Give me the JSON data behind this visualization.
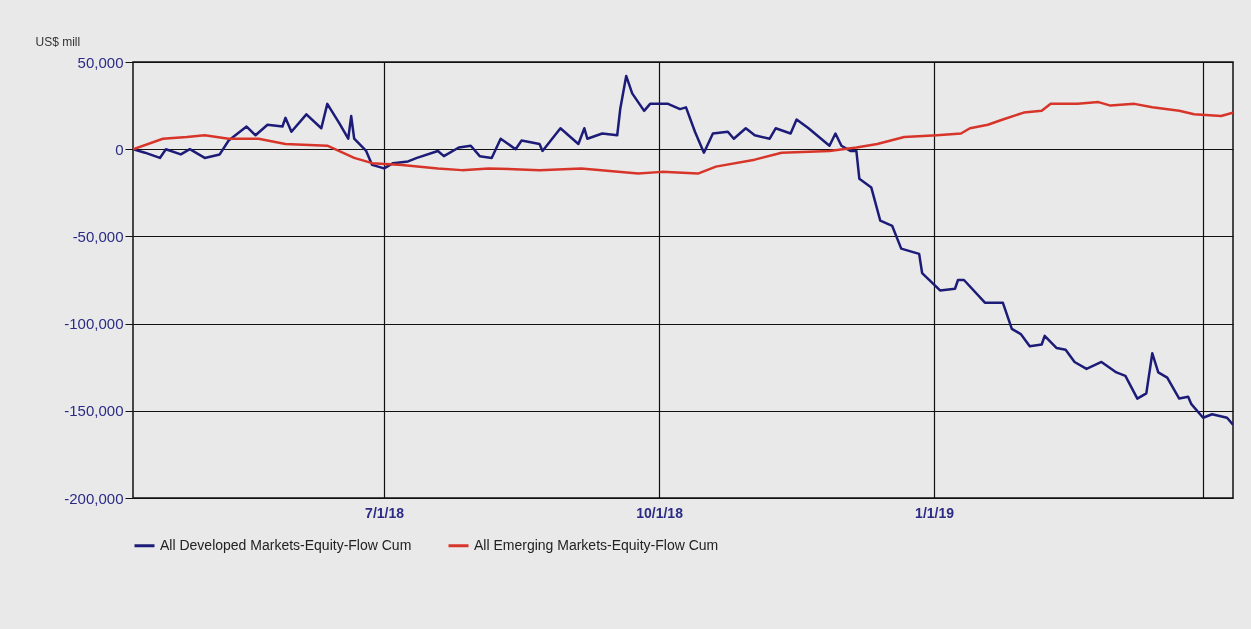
{
  "chart_data": {
    "type": "line",
    "ylabel": "US$ mill",
    "xlim": [
      "2018-04-08",
      "2019-04-11"
    ],
    "xticks": [
      {
        "value": "2018-07-01",
        "label": "7/1/18"
      },
      {
        "value": "2018-10-01",
        "label": "10/1/18"
      },
      {
        "value": "2019-01-01",
        "label": "1/1/19"
      },
      {
        "value": "2019-04-01",
        "label": null
      }
    ],
    "ylim": [
      -200000,
      50000
    ],
    "yticks": [
      {
        "value": 50000,
        "label": "50,000"
      },
      0,
      {
        "value": -50000,
        "label": "-50,000"
      },
      {
        "value": -100000,
        "label": "-100,000"
      },
      {
        "value": -150000,
        "label": "-150,000"
      },
      {
        "value": -200000,
        "label": "-200,000"
      }
    ],
    "grid": true,
    "legend": "bottom",
    "series": [
      {
        "name": "All Developed Markets-Equity-Flow Cum",
        "color": "#1c1c78",
        "x": [
          "2018-04-08",
          "2018-04-12",
          "2018-04-17",
          "2018-04-19",
          "2018-04-24",
          "2018-04-27",
          "2018-05-02",
          "2018-05-07",
          "2018-05-10",
          "2018-05-16",
          "2018-05-19",
          "2018-05-23",
          "2018-05-28",
          "2018-05-29",
          "2018-05-31",
          "2018-06-05",
          "2018-06-10",
          "2018-06-12",
          "2018-06-16",
          "2018-06-19",
          "2018-06-20",
          "2018-06-21",
          "2018-06-25",
          "2018-06-27",
          "2018-07-01",
          "2018-07-04",
          "2018-07-09",
          "2018-07-12",
          "2018-07-19",
          "2018-07-21",
          "2018-07-26",
          "2018-07-30",
          "2018-08-02",
          "2018-08-06",
          "2018-08-09",
          "2018-08-14",
          "2018-08-16",
          "2018-08-22",
          "2018-08-23",
          "2018-08-29",
          "2018-09-04",
          "2018-09-06",
          "2018-09-07",
          "2018-09-12",
          "2018-09-17",
          "2018-09-18",
          "2018-09-20",
          "2018-09-22",
          "2018-09-26",
          "2018-09-28",
          "2018-10-04",
          "2018-10-08",
          "2018-10-10",
          "2018-10-13",
          "2018-10-16",
          "2018-10-19",
          "2018-10-24",
          "2018-10-26",
          "2018-10-30",
          "2018-11-02",
          "2018-11-07",
          "2018-11-09",
          "2018-11-14",
          "2018-11-16",
          "2018-11-20",
          "2018-11-27",
          "2018-11-29",
          "2018-12-01",
          "2018-12-04",
          "2018-12-06",
          "2018-12-07",
          "2018-12-11",
          "2018-12-14",
          "2018-12-18",
          "2018-12-21",
          "2018-12-27",
          "2018-12-28",
          "2019-01-03",
          "2019-01-08",
          "2019-01-09",
          "2019-01-11",
          "2019-01-18",
          "2019-01-24",
          "2019-01-27",
          "2019-01-30",
          "2019-02-02",
          "2019-02-06",
          "2019-02-07",
          "2019-02-11",
          "2019-02-14",
          "2019-02-17",
          "2019-02-21",
          "2019-02-26",
          "2019-03-03",
          "2019-03-06",
          "2019-03-10",
          "2019-03-13",
          "2019-03-15",
          "2019-03-17",
          "2019-03-20",
          "2019-03-24",
          "2019-03-27",
          "2019-03-28",
          "2019-04-01",
          "2019-04-04",
          "2019-04-09",
          "2019-04-11"
        ],
        "values": [
          0,
          -2000,
          -5000,
          0,
          -3000,
          0,
          -5000,
          -3000,
          5000,
          13000,
          8000,
          14000,
          13000,
          18000,
          10000,
          20000,
          12000,
          26000,
          15000,
          6000,
          19000,
          6000,
          -1000,
          -9000,
          -11000,
          -8000,
          -7000,
          -5000,
          -1000,
          -4000,
          1000,
          2000,
          -4000,
          -5000,
          6000,
          0,
          5000,
          3000,
          -1000,
          12000,
          3000,
          12000,
          6000,
          9000,
          8000,
          23000,
          42000,
          32000,
          22000,
          26000,
          26000,
          23000,
          24000,
          10000,
          -2000,
          9000,
          10000,
          6000,
          12000,
          8000,
          6000,
          12000,
          9000,
          17000,
          12000,
          2000,
          9000,
          2000,
          -1000,
          -1000,
          -17000,
          -22000,
          -41000,
          -44000,
          -57000,
          -60000,
          -71000,
          -81000,
          -80000,
          -75000,
          -75000,
          -88000,
          -88000,
          -103000,
          -106000,
          -113000,
          -112000,
          -107000,
          -114000,
          -115000,
          -122000,
          -126000,
          -122000,
          -128000,
          -130000,
          -143000,
          -140000,
          -117000,
          -128000,
          -131000,
          -143000,
          -142000,
          -146000,
          -154000,
          -152000,
          -154000,
          -158000
        ]
      },
      {
        "name": "All Emerging Markets-Equity-Flow Cum",
        "color": "#d8352a",
        "x": [
          "2018-04-08",
          "2018-04-18",
          "2018-04-26",
          "2018-05-02",
          "2018-05-10",
          "2018-05-20",
          "2018-05-29",
          "2018-06-12",
          "2018-06-21",
          "2018-06-27",
          "2018-07-07",
          "2018-07-19",
          "2018-07-27",
          "2018-08-05",
          "2018-08-22",
          "2018-09-05",
          "2018-09-24",
          "2018-10-02",
          "2018-10-14",
          "2018-10-20",
          "2018-11-02",
          "2018-11-11",
          "2018-11-27",
          "2018-12-06",
          "2018-12-13",
          "2018-12-22",
          "2019-01-02",
          "2019-01-10",
          "2019-01-13",
          "2019-01-19",
          "2019-01-24",
          "2019-01-31",
          "2019-02-06",
          "2019-02-09",
          "2019-02-18",
          "2019-02-25",
          "2019-03-01",
          "2019-03-09",
          "2019-03-15",
          "2019-03-24",
          "2019-03-29",
          "2019-04-07",
          "2019-04-11"
        ],
        "values": [
          0,
          6000,
          7000,
          8000,
          6000,
          6000,
          3000,
          2000,
          -5000,
          -8000,
          -9000,
          -11000,
          -12000,
          -11000,
          -12000,
          -11000,
          -14000,
          -13000,
          -14000,
          -10000,
          -6000,
          -2000,
          -1000,
          1000,
          3000,
          7000,
          8000,
          9000,
          12000,
          14000,
          17000,
          21000,
          22000,
          26000,
          26000,
          27000,
          25000,
          26000,
          24000,
          22000,
          20000,
          19000,
          21000
        ]
      }
    ]
  }
}
